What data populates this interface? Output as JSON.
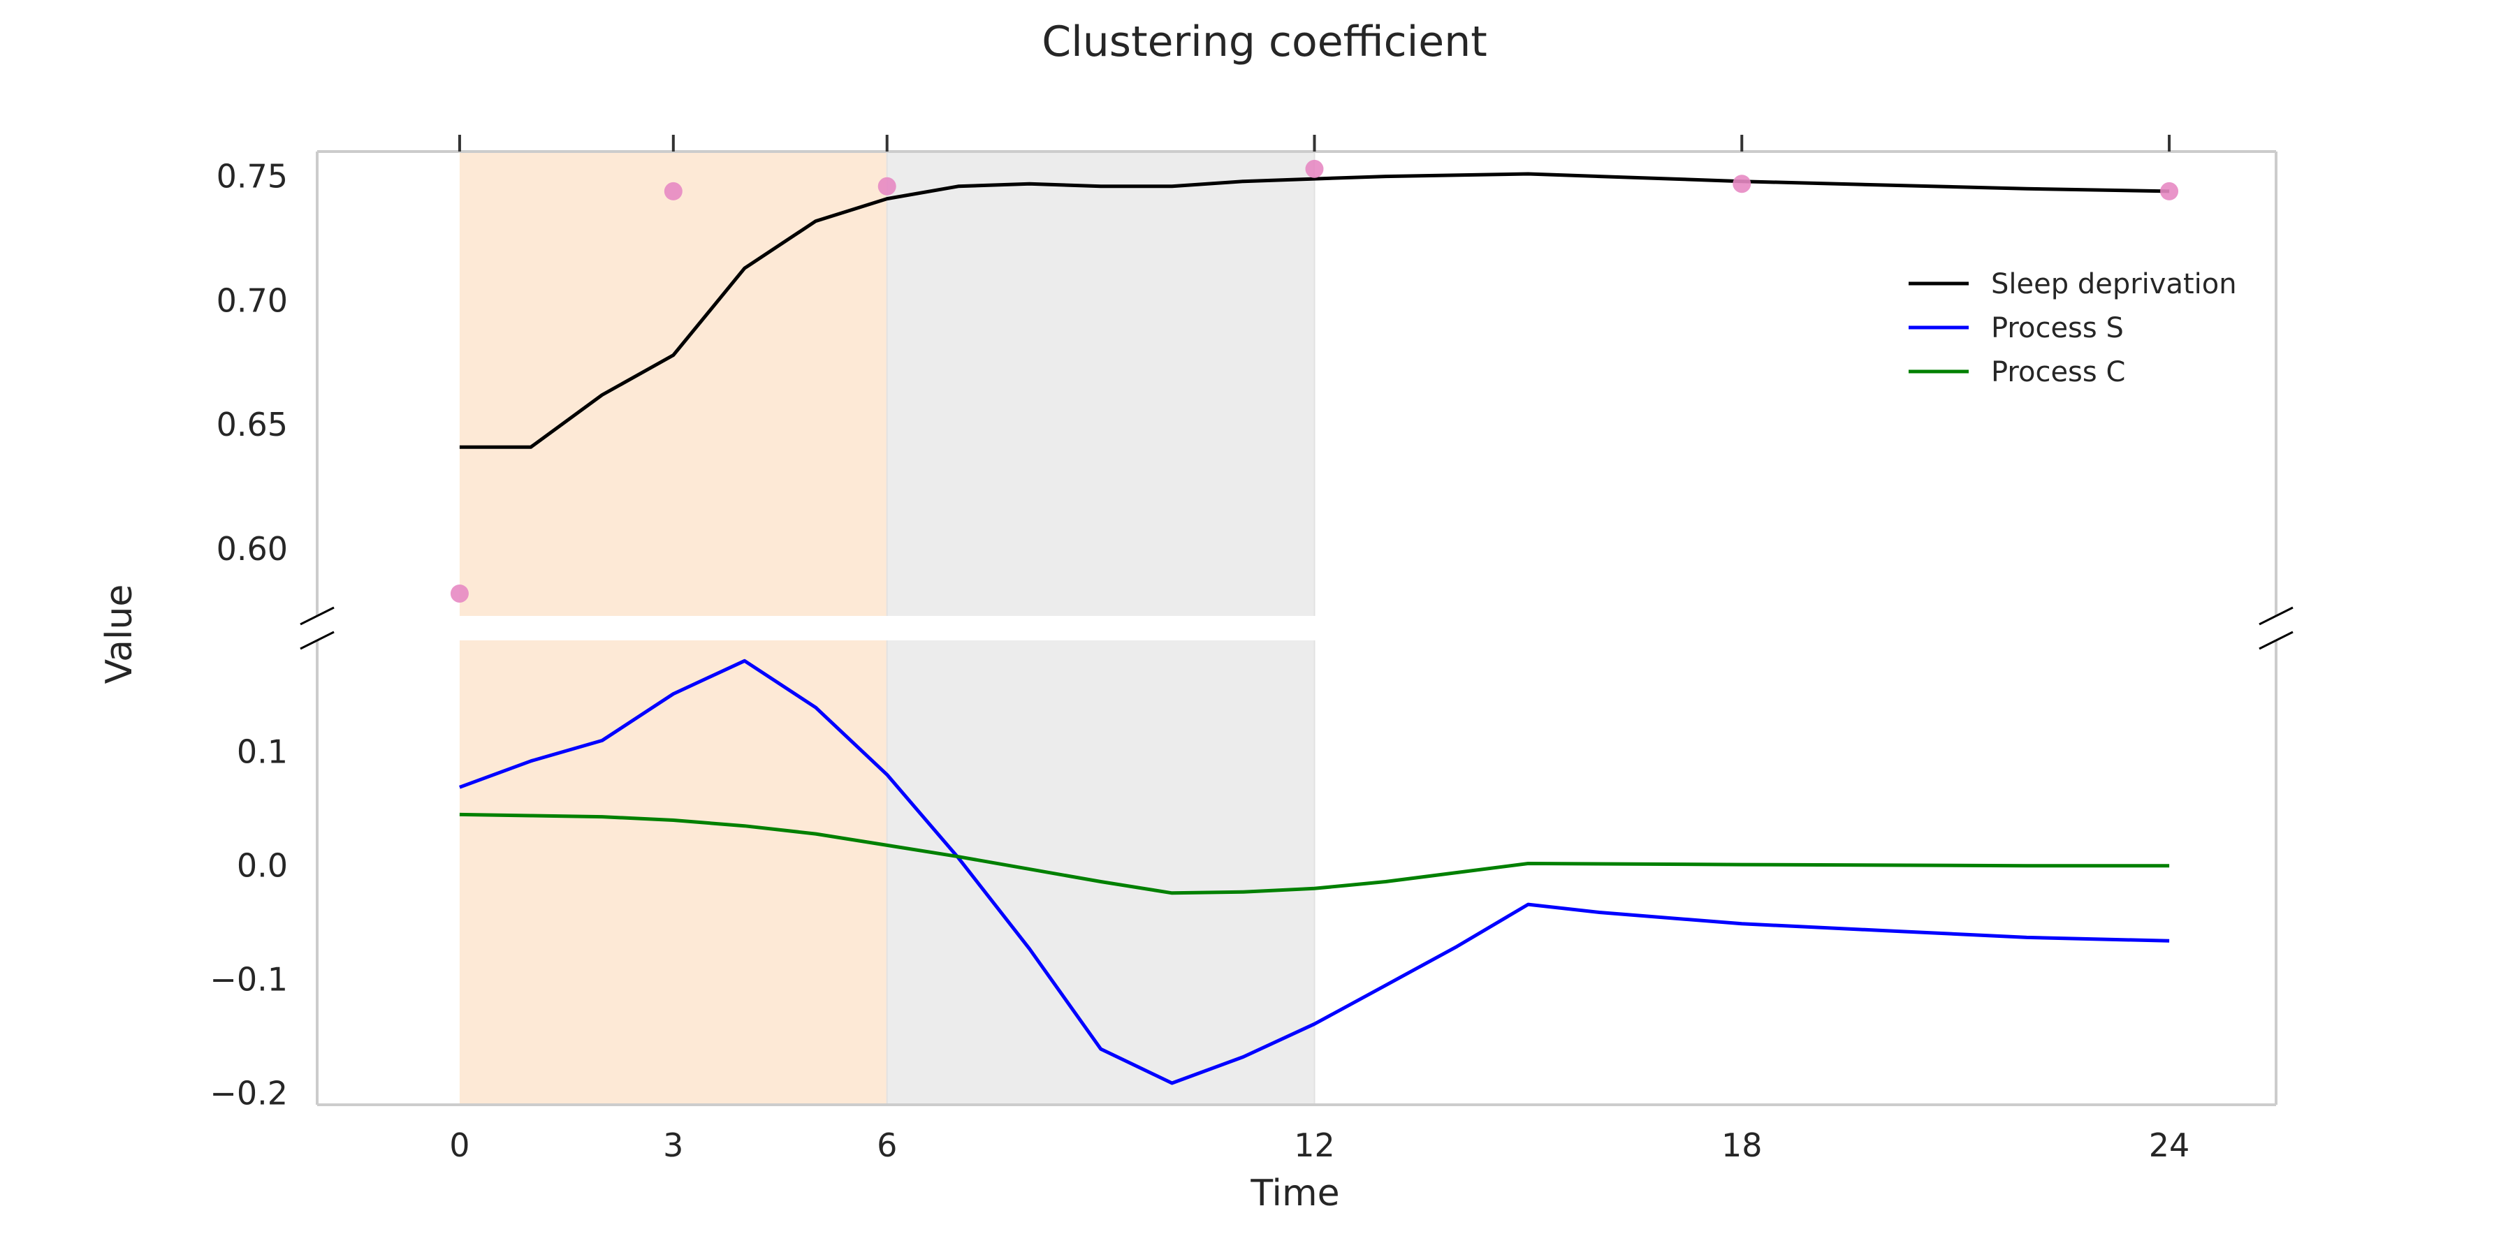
{
  "chart_data": {
    "type": "line",
    "title": "Clustering coefficient",
    "xlabel": "Time",
    "ylabel": "Value",
    "xlim": [
      -2,
      25.5
    ],
    "x_ticks": [
      0,
      3,
      6,
      12,
      18,
      24
    ],
    "broken_y_axis": true,
    "grid": false,
    "legend_position": "upper-right",
    "shaded_regions": [
      {
        "x_start": 0,
        "x_end": 6,
        "color": "#fde9d6"
      },
      {
        "x_start": 6,
        "x_end": 12,
        "color": "#ececec"
      }
    ],
    "panels": {
      "top": {
        "ylim": [
          0.573,
          0.76
        ],
        "y_ticks": [
          0.6,
          0.65,
          0.7,
          0.75
        ],
        "y_tick_labels": [
          "0.60",
          "0.65",
          "0.70",
          "0.75"
        ],
        "series": [
          {
            "name": "Sleep deprivation",
            "type": "line",
            "color": "#000000",
            "x": [
              0,
              1,
              2,
              3,
              4,
              5,
              6,
              7,
              8,
              9,
              10,
              11,
              12,
              13,
              15,
              18,
              22,
              24
            ],
            "y": [
              0.641,
              0.641,
              0.662,
              0.678,
              0.713,
              0.732,
              0.741,
              0.746,
              0.747,
              0.746,
              0.746,
              0.748,
              0.749,
              0.75,
              0.751,
              0.748,
              0.745,
              0.744
            ]
          },
          {
            "type": "scatter",
            "color": "#e78ac3",
            "x": [
              0,
              3,
              6,
              12,
              18,
              24
            ],
            "y": [
              0.582,
              0.744,
              0.746,
              0.753,
              0.747,
              0.744
            ]
          }
        ]
      },
      "bottom": {
        "ylim": [
          -0.21,
          0.198
        ],
        "y_ticks": [
          -0.2,
          -0.1,
          0.0,
          0.1
        ],
        "y_tick_labels": [
          "−0.2",
          "−0.1",
          "0.0",
          "0.1"
        ],
        "series": [
          {
            "name": "Process S",
            "type": "line",
            "color": "#0000ff",
            "x": [
              0,
              1,
              2,
              3,
              4,
              5,
              6,
              7,
              8,
              9,
              10,
              11,
              12,
              13,
              14,
              15,
              16,
              18,
              20,
              22,
              24
            ],
            "y": [
              0.069,
              0.092,
              0.11,
              0.151,
              0.18,
              0.139,
              0.08,
              0.007,
              -0.073,
              -0.161,
              -0.191,
              -0.168,
              -0.139,
              -0.105,
              -0.071,
              -0.034,
              -0.041,
              -0.051,
              -0.057,
              -0.063,
              -0.066
            ]
          },
          {
            "name": "Process C",
            "type": "line",
            "color": "#008000",
            "x": [
              0,
              1,
              2,
              3,
              4,
              5,
              6,
              7,
              8,
              9,
              10,
              11,
              12,
              13,
              14,
              15,
              18,
              22,
              24
            ],
            "y": [
              0.045,
              0.044,
              0.043,
              0.04,
              0.035,
              0.028,
              0.018,
              0.008,
              -0.003,
              -0.014,
              -0.024,
              -0.023,
              -0.02,
              -0.014,
              -0.006,
              0.002,
              0.001,
              0.0,
              0.0
            ]
          }
        ]
      }
    },
    "legend": [
      {
        "label": "Sleep deprivation",
        "color": "#000000"
      },
      {
        "label": "Process S",
        "color": "#0000ff"
      },
      {
        "label": "Process C",
        "color": "#008000"
      }
    ]
  }
}
